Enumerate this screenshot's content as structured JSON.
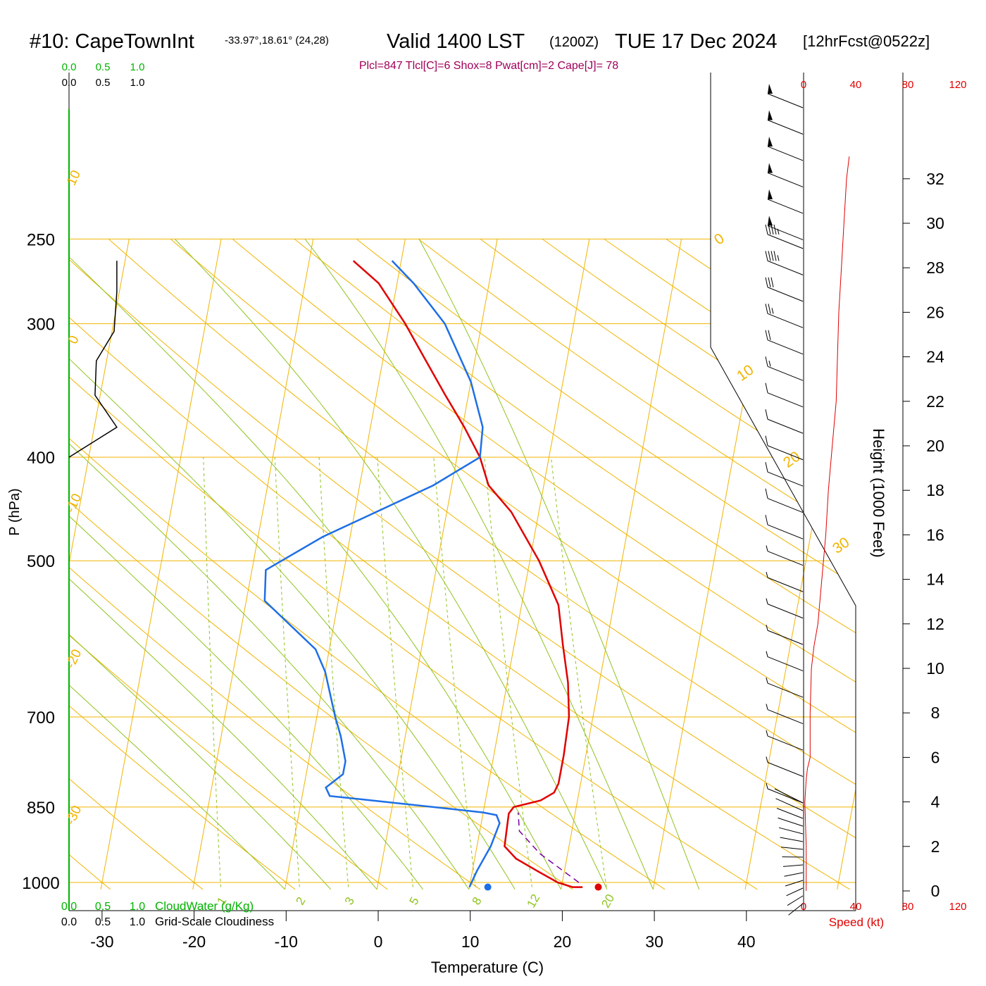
{
  "header": {
    "station": "#10: CapeTownInt",
    "coords": "-33.97°,18.61° (24,28)",
    "valid": "Valid 1400 LST",
    "utc": "(1200Z)",
    "date": "TUE 17 Dec 2024",
    "forecast": "[12hrFcst@0522z]"
  },
  "indices": "Plcl=847 Tlcl[C]=6 Shox=8 Pwat[cm]=2 Cape[J]= 78",
  "colors": {
    "isotherm": "#f0b400",
    "dry_adiabat": "#f0b400",
    "moist_adiabat": "#8fc31f",
    "mixing_ratio": "#8fc31f",
    "temperature": "#e00000",
    "dewpoint": "#1e6fe6",
    "parcel": "#7a00a0",
    "cloudiness": "#000000",
    "cloudwater": "#00b400",
    "wind_speed": "#e00000",
    "indices": "#a0005a"
  },
  "chart_data": {
    "type": "line",
    "chart_kind": "skew-T log-P sounding",
    "title": "#10: CapeTownInt",
    "xlabel": "Temperature (C)",
    "ylabel": "P (hPa)",
    "y2label": "Height (1000 Feet)",
    "x_ticks": [
      "-30",
      "-20",
      "-10",
      "0",
      "10",
      "20",
      "30",
      "40"
    ],
    "pressure_ticks": [
      "250",
      "300",
      "400",
      "500",
      "700",
      "850",
      "1000"
    ],
    "height_ticks": [
      "32",
      "30",
      "28",
      "26",
      "24",
      "22",
      "20",
      "18",
      "16",
      "14",
      "12",
      "10",
      "8",
      "6",
      "4",
      "2",
      "0"
    ],
    "cloud_ticks_top_green": [
      "0.0",
      "0.5",
      "1.0"
    ],
    "cloud_ticks_top_black": [
      "0.0",
      "0.5",
      "1.0"
    ],
    "cloud_ticks_bottom_green": [
      "0.0",
      "0.5",
      "1.0"
    ],
    "cloud_ticks_bottom_black": [
      "0.0",
      "0.5",
      "1.0"
    ],
    "cloudwater_label": "CloudWater (g/Kg)",
    "cloudiness_label": "Grid-Scale Cloudiness",
    "speed_ticks": [
      "0",
      "40",
      "80",
      "120"
    ],
    "speed_label": "Speed (kt)",
    "isotherm_labels": [
      "10",
      "0",
      "-10",
      "-20",
      "-30",
      "0",
      "10",
      "20",
      "30"
    ],
    "mixing_ratio_labels": [
      "1",
      "2",
      "3",
      "5",
      "8",
      "12",
      "20"
    ],
    "isobars": [
      250,
      300,
      400,
      500,
      700,
      850,
      1000
    ],
    "surface_dot_temperature": 24,
    "surface_dot_dewpoint": 12,
    "series": [
      {
        "name": "Temperature",
        "points": [
          [
            22.3,
            1010
          ],
          [
            21.2,
            1010
          ],
          [
            19.5,
            1000
          ],
          [
            17.0,
            975
          ],
          [
            14.5,
            950
          ],
          [
            13.0,
            925
          ],
          [
            12.8,
            862
          ],
          [
            13.2,
            850
          ],
          [
            16.0,
            838
          ],
          [
            17.3,
            824
          ],
          [
            17.6,
            808
          ],
          [
            17.6,
            760
          ],
          [
            17.4,
            700
          ],
          [
            16.6,
            650
          ],
          [
            15.3,
            600
          ],
          [
            14.0,
            550
          ],
          [
            11.0,
            500
          ],
          [
            7.0,
            450
          ],
          [
            4.0,
            425
          ],
          [
            2.5,
            400
          ],
          [
            0.2,
            375
          ],
          [
            -2.5,
            350
          ],
          [
            -5.3,
            325
          ],
          [
            -8.3,
            300
          ],
          [
            -12.0,
            275
          ],
          [
            -15.2,
            262
          ]
        ]
      },
      {
        "name": "Dewpoint",
        "points": [
          [
            10.0,
            1010
          ],
          [
            10.5,
            975
          ],
          [
            11.5,
            925
          ],
          [
            12.0,
            880
          ],
          [
            11.5,
            865
          ],
          [
            10.0,
            860
          ],
          [
            0.0,
            842
          ],
          [
            -7.0,
            830
          ],
          [
            -7.6,
            815
          ],
          [
            -6.0,
            792
          ],
          [
            -6.0,
            770
          ],
          [
            -7.0,
            730
          ],
          [
            -8.0,
            700
          ],
          [
            -10.0,
            635
          ],
          [
            -11.5,
            605
          ],
          [
            -18.0,
            545
          ],
          [
            -18.5,
            510
          ],
          [
            -13.0,
            475
          ],
          [
            -2.0,
            425
          ],
          [
            2.5,
            400
          ],
          [
            2.2,
            375
          ],
          [
            0.0,
            340
          ],
          [
            -4.0,
            300
          ],
          [
            -8.2,
            275
          ],
          [
            -11.0,
            262
          ]
        ]
      },
      {
        "name": "Parcel",
        "dashed": true,
        "points": [
          [
            21.8,
            1000
          ],
          [
            17.0,
            940
          ],
          [
            14.3,
            895
          ],
          [
            13.8,
            860
          ]
        ]
      },
      {
        "name": "Grid-Scale Cloudiness",
        "points": [
          [
            0.7,
            262
          ],
          [
            0.7,
            280
          ],
          [
            0.66,
            305
          ],
          [
            0.4,
            325
          ],
          [
            0.38,
            350
          ],
          [
            0.7,
            375
          ],
          [
            0.0,
            400
          ]
        ]
      },
      {
        "name": "Wind Speed",
        "points": [
          [
            2,
            0
          ],
          [
            2,
            2
          ],
          [
            1,
            4
          ],
          [
            2,
            5
          ],
          [
            3,
            5.5
          ],
          [
            5,
            6
          ],
          [
            5,
            8
          ],
          [
            6,
            10
          ],
          [
            8,
            11
          ],
          [
            11,
            12
          ],
          [
            14,
            14
          ],
          [
            17,
            16
          ],
          [
            19,
            18
          ],
          [
            22,
            20
          ],
          [
            25,
            22
          ],
          [
            26,
            24
          ],
          [
            27,
            26
          ],
          [
            29,
            28
          ],
          [
            31,
            30
          ],
          [
            33,
            32
          ],
          [
            35,
            33
          ]
        ]
      }
    ],
    "wind_barbs_top_kt": [
      50,
      50,
      50,
      50,
      50,
      50,
      45,
      45,
      30,
      25,
      20,
      15,
      10,
      10,
      10,
      10,
      10,
      10,
      5,
      5,
      5,
      5,
      5,
      5,
      5,
      5,
      5,
      5
    ],
    "grid": true
  }
}
